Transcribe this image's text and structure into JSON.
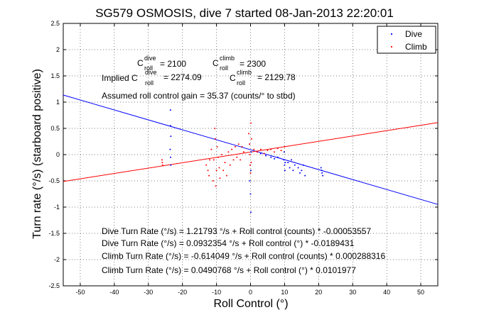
{
  "chart_data": {
    "type": "scatter",
    "title": "SG579 OSMOSIS, dive 7 started 08-Jan-2013 22:20:01",
    "xlabel": "Roll Control (°)",
    "ylabel": "Turn rate (°/s) (starboard positive)",
    "xlim": [
      -55,
      55
    ],
    "ylim": [
      -2.5,
      2.5
    ],
    "xticks": [
      -50,
      -40,
      -30,
      -20,
      -10,
      0,
      10,
      20,
      30,
      40,
      50
    ],
    "yticks": [
      -2.5,
      -2,
      -1.5,
      -1,
      -0.5,
      0,
      0.5,
      1,
      1.5,
      2,
      2.5
    ],
    "grid": true,
    "legend_position": "top-right",
    "series": [
      {
        "name": "Dive",
        "color": "#0000ff",
        "points": [
          [
            -23.5,
            0.85
          ],
          [
            -23.5,
            0.55
          ],
          [
            -23.4,
            0.35
          ],
          [
            -23.6,
            0.1
          ],
          [
            -23.5,
            -0.05
          ],
          [
            -23.4,
            -0.2
          ],
          [
            -0.3,
            0.2
          ],
          [
            0.2,
            0.05
          ],
          [
            0.1,
            -0.3
          ],
          [
            -0.2,
            -0.5
          ],
          [
            0,
            -0.75
          ],
          [
            0.1,
            -1.1
          ],
          [
            2,
            0.05
          ],
          [
            3,
            0.02
          ],
          [
            4.5,
            -0.02
          ],
          [
            6,
            -0.05
          ],
          [
            7,
            -0.08
          ],
          [
            8,
            -0.05
          ],
          [
            9.8,
            -0.1
          ],
          [
            10,
            -0.2
          ],
          [
            10.1,
            -0.3
          ],
          [
            9.9,
            0.05
          ],
          [
            10.2,
            -0.15
          ],
          [
            11,
            -0.15
          ],
          [
            11.5,
            -0.25
          ],
          [
            12,
            -0.1
          ],
          [
            12.5,
            -0.3
          ],
          [
            13,
            -0.2
          ],
          [
            14,
            -0.25
          ],
          [
            14.5,
            -0.35
          ],
          [
            15,
            -0.3
          ],
          [
            15.5,
            -0.2
          ],
          [
            16,
            -0.4
          ],
          [
            20.7,
            -0.25
          ],
          [
            21,
            -0.35
          ],
          [
            21.2,
            -0.4
          ],
          [
            20.9,
            -0.3
          ]
        ]
      },
      {
        "name": "Climb",
        "color": "#ff0000",
        "points": [
          [
            -26,
            -0.1
          ],
          [
            -25.8,
            -0.2
          ],
          [
            -25.9,
            -0.15
          ],
          [
            -13,
            -0.2
          ],
          [
            -12.5,
            -0.3
          ],
          [
            -12,
            -0.1
          ],
          [
            -12.2,
            -0.4
          ],
          [
            -11.5,
            0.1
          ],
          [
            -11,
            -0.5
          ],
          [
            -10.8,
            -0.1
          ],
          [
            -10.5,
            0.5
          ],
          [
            -10.3,
            0.3
          ],
          [
            -10.2,
            -0.6
          ],
          [
            -10,
            -0.3
          ],
          [
            -9.8,
            0.15
          ],
          [
            -9.5,
            -0.05
          ],
          [
            -9.2,
            -0.25
          ],
          [
            -9,
            -0.45
          ],
          [
            -8.5,
            0
          ],
          [
            -8,
            -0.3
          ],
          [
            -7.5,
            -0.15
          ],
          [
            -7,
            -0.4
          ],
          [
            -6.5,
            0.05
          ],
          [
            -6,
            -0.2
          ],
          [
            -5.5,
            0.1
          ],
          [
            -5,
            -0.1
          ],
          [
            -4.5,
            0.15
          ],
          [
            -4,
            -0.05
          ],
          [
            -3.5,
            0.2
          ],
          [
            -3,
            -0.1
          ],
          [
            -2.5,
            0.15
          ],
          [
            -2,
            0.05
          ],
          [
            -0.5,
            0.4
          ],
          [
            -0.3,
            0.2
          ],
          [
            -0.2,
            0.0
          ],
          [
            -0.1,
            -0.2
          ],
          [
            0,
            -0.35
          ],
          [
            0.1,
            0.6
          ],
          [
            0.2,
            -0.15
          ],
          [
            0.3,
            0.3
          ],
          [
            1,
            0.1
          ],
          [
            2,
            0.05
          ],
          [
            3,
            0.1
          ],
          [
            4,
            0.02
          ],
          [
            5,
            0.08
          ],
          [
            6,
            0.1
          ],
          [
            7,
            0.05
          ],
          [
            8,
            0.12
          ],
          [
            9,
            0.08
          ],
          [
            10,
            0.15
          ]
        ]
      }
    ],
    "fit_lines": [
      {
        "name": "Dive fit",
        "color": "#0000ff",
        "slope": -0.0189431,
        "intercept": 0.0932354
      },
      {
        "name": "Climb fit",
        "color": "#ff0000",
        "slope": 0.0101977,
        "intercept": 0.0490768
      }
    ],
    "annotations": {
      "c_dive_base": "C",
      "c_dive_sup": "dive",
      "c_dive_sub": "roll",
      "c_dive_val": "= 2100",
      "c_climb_base": "C",
      "c_climb_sup": "climb",
      "c_climb_sub": "roll",
      "c_climb_val": "= 2300",
      "implied_label": "Implied C",
      "implied_dive_sup": "dive",
      "implied_dive_sub": "roll",
      "implied_dive_val": "= 2274.09",
      "implied_climb_base": "C",
      "implied_climb_sup": "climb",
      "implied_climb_sub": "roll",
      "implied_climb_val": "= 2129.78",
      "gain": "Assumed roll control gain = 35.37 (counts/° to stbd)",
      "eq1": "Dive Turn Rate (°/s) = 1.21793 °/s + Roll control (counts) * -0.00053557",
      "eq2": "Dive Turn Rate (°/s) = 0.0932354 °/s + Roll control (°) * -0.0189431",
      "eq3": "Climb Turn Rate (°/s) = -0.614049 °/s + Roll control (counts) * 0.000288316",
      "eq4": "Climb Turn Rate (°/s) = 0.0490768 °/s + Roll control (°) * 0.0101977"
    }
  }
}
